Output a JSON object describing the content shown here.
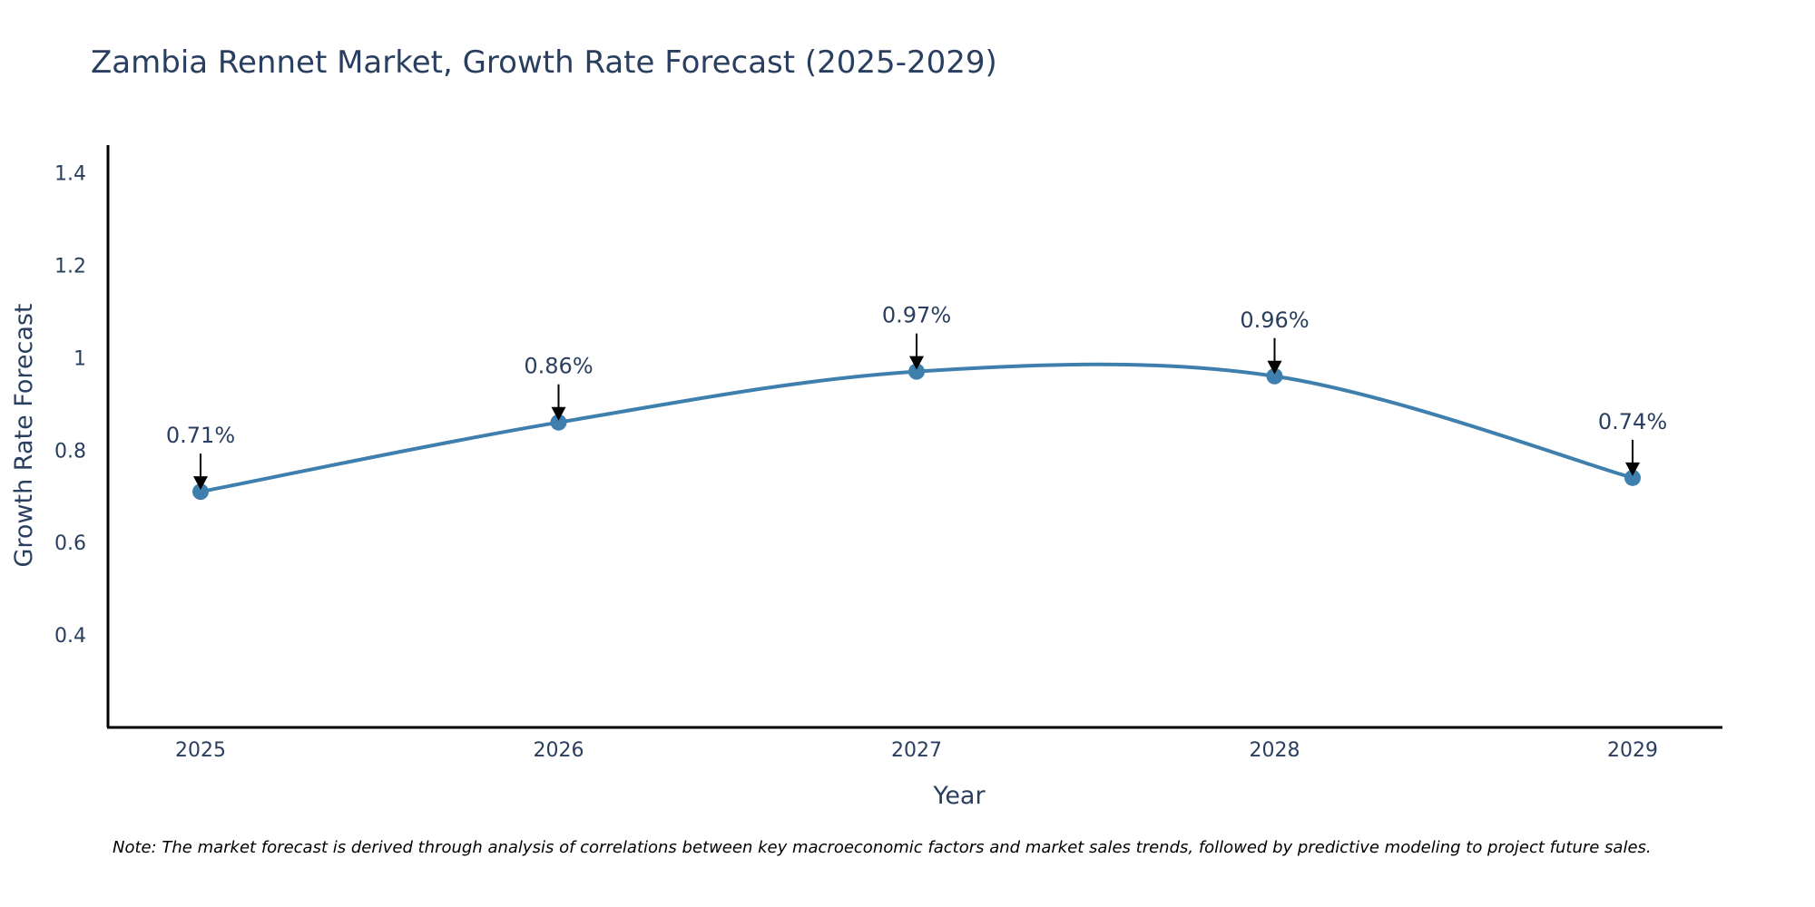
{
  "chart_data": {
    "type": "line",
    "title": "Zambia Rennet Market, Growth Rate Forecast (2025-2029)",
    "xlabel": "Year",
    "ylabel": "Growth Rate Forecast",
    "x": [
      "2025",
      "2026",
      "2027",
      "2028",
      "2029"
    ],
    "series": [
      {
        "name": "Growth Rate Forecast",
        "values": [
          0.71,
          0.86,
          0.97,
          0.96,
          0.74
        ]
      }
    ],
    "data_labels": [
      "0.71%",
      "0.86%",
      "0.97%",
      "0.96%",
      "0.74%"
    ],
    "y_ticks": [
      0.4,
      0.6,
      0.8,
      1,
      1.2,
      1.4
    ],
    "y_tick_labels": [
      "0.4",
      "0.6",
      "0.8",
      "1",
      "1.2",
      "1.4"
    ],
    "ylim": [
      0.2,
      1.46
    ],
    "grid": false,
    "line_color": "#3f7fae",
    "annotation_arrow_color": "#000000",
    "note": "Note: The market forecast is derived through analysis of correlations between key macroeconomic factors and market sales trends, followed by predictive modeling to project future sales."
  }
}
